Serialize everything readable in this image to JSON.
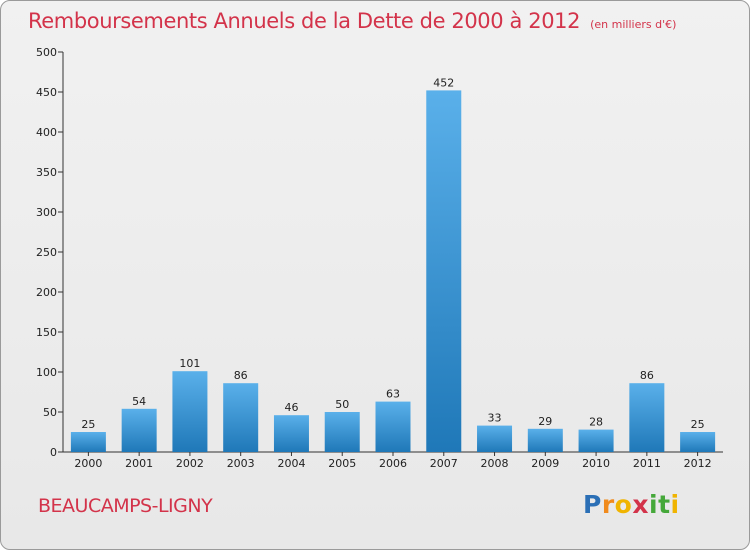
{
  "chart_data": {
    "type": "bar",
    "title": "Remboursements Annuels de la Dette de 2000 à 2012",
    "unit_label": "(en milliers d'€)",
    "categories": [
      "2000",
      "2001",
      "2002",
      "2003",
      "2004",
      "2005",
      "2006",
      "2007",
      "2008",
      "2009",
      "2010",
      "2011",
      "2012"
    ],
    "values": [
      25,
      54,
      101,
      86,
      46,
      50,
      63,
      452,
      33,
      29,
      28,
      86,
      25
    ],
    "ylim": [
      0,
      500
    ],
    "yticks": [
      0,
      50,
      100,
      150,
      200,
      250,
      300,
      350,
      400,
      450,
      500
    ],
    "xlabel": "",
    "ylabel": "",
    "grid": false,
    "legend": "none",
    "bar_color_top": "#5ab0ea",
    "bar_color_bottom": "#1f78b8"
  },
  "footer": {
    "commune": "BEAUCAMPS-LIGNY"
  },
  "logo": {
    "letters": [
      "P",
      "r",
      "o",
      "x",
      "i",
      "t",
      "i"
    ],
    "colors": [
      "#2b6fb6",
      "#f08a1c",
      "#f0b400",
      "#d3334a",
      "#45a83a",
      "#45a83a",
      "#f0b400"
    ]
  },
  "colors": {
    "title": "#d3334a",
    "axis": "#333333",
    "text": "#222222"
  }
}
